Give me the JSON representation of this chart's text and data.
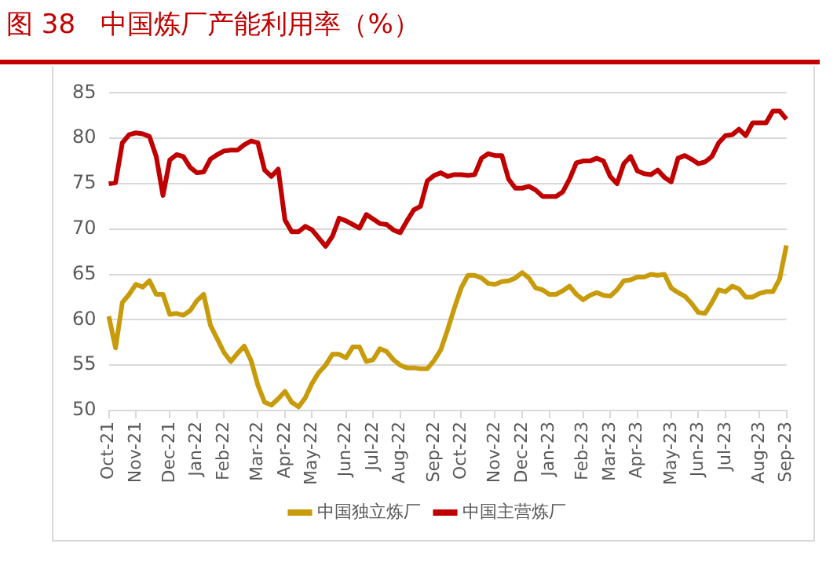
{
  "chart_data": {
    "type": "line",
    "title": "图 38   中国炼厂产能利用率（%）",
    "categories": [
      "Oct-21",
      null,
      null,
      null,
      "Nov-21",
      null,
      null,
      null,
      null,
      "Dec-21",
      null,
      null,
      null,
      "Jan-22",
      null,
      null,
      null,
      "Feb-22",
      null,
      null,
      null,
      null,
      "Mar-22",
      null,
      null,
      null,
      "Apr-22",
      null,
      null,
      null,
      "May-22",
      null,
      null,
      null,
      null,
      "Jun-22",
      null,
      null,
      null,
      "Jul-22",
      null,
      null,
      null,
      "Aug-22",
      null,
      null,
      null,
      null,
      "Sep-22",
      null,
      null,
      null,
      "Oct-22",
      null,
      null,
      null,
      null,
      "Nov-22",
      null,
      null,
      null,
      "Dec-22",
      null,
      null,
      null,
      "Jan-23",
      null,
      null,
      null,
      null,
      "Feb-23",
      null,
      null,
      null,
      "Mar-23",
      null,
      null,
      null,
      "Apr-23",
      null,
      null,
      null,
      null,
      "May-23",
      null,
      null,
      null,
      "Jun-23",
      null,
      null,
      null,
      "Jul-23",
      null,
      null,
      null,
      null,
      "Aug-23",
      null,
      null,
      null,
      "Sep-23"
    ],
    "series": [
      {
        "name": "中国独立炼厂",
        "color": "#c89b0a",
        "values": [
          60.4,
          56.9,
          61.9,
          62.8,
          63.9,
          63.6,
          64.3,
          62.8,
          62.8,
          60.6,
          60.7,
          60.5,
          61.0,
          62.1,
          62.8,
          59.4,
          57.9,
          56.4,
          55.4,
          56.3,
          57.1,
          55.5,
          52.8,
          50.9,
          50.6,
          51.3,
          52.1,
          50.9,
          50.4,
          51.4,
          53.0,
          54.2,
          55.0,
          56.2,
          56.2,
          55.8,
          57.0,
          57.0,
          55.4,
          55.6,
          56.8,
          56.5,
          55.6,
          55.0,
          54.7,
          54.7,
          54.6,
          54.6,
          55.5,
          56.7,
          58.9,
          61.3,
          63.5,
          64.9,
          64.9,
          64.6,
          64.0,
          63.9,
          64.2,
          64.3,
          64.6,
          65.2,
          64.6,
          63.5,
          63.3,
          62.8,
          62.8,
          63.2,
          63.7,
          62.8,
          62.2,
          62.7,
          63.0,
          62.7,
          62.6,
          63.3,
          64.3,
          64.4,
          64.7,
          64.7,
          65.0,
          64.9,
          65.0,
          63.5,
          63.0,
          62.6,
          61.8,
          60.8,
          60.7,
          61.9,
          63.3,
          63.1,
          63.7,
          63.4,
          62.5,
          62.5,
          62.9,
          63.1,
          63.1,
          64.5,
          68.2
        ]
      },
      {
        "name": "中国主营炼厂",
        "color": "#c00000",
        "values": [
          75.0,
          75.1,
          79.5,
          80.4,
          80.6,
          80.5,
          80.2,
          78.0,
          73.7,
          77.6,
          78.2,
          78.0,
          76.8,
          76.2,
          76.3,
          77.7,
          78.2,
          78.6,
          78.7,
          78.7,
          79.3,
          79.7,
          79.5,
          76.5,
          75.8,
          76.6,
          71.0,
          69.7,
          69.7,
          70.3,
          69.9,
          69.0,
          68.1,
          69.2,
          71.2,
          70.9,
          70.5,
          70.1,
          71.6,
          71.1,
          70.6,
          70.5,
          69.9,
          69.6,
          70.9,
          72.1,
          72.5,
          75.3,
          75.9,
          76.2,
          75.8,
          76.0,
          76.0,
          75.9,
          76.0,
          77.8,
          78.3,
          78.1,
          78.1,
          75.5,
          74.5,
          74.5,
          74.7,
          74.3,
          73.6,
          73.6,
          73.6,
          74.1,
          75.5,
          77.3,
          77.5,
          77.5,
          77.8,
          77.5,
          75.8,
          75.0,
          77.2,
          78.0,
          76.4,
          76.1,
          76.0,
          76.5,
          75.7,
          75.2,
          77.8,
          78.1,
          77.7,
          77.2,
          77.4,
          78.0,
          79.5,
          80.3,
          80.4,
          81.0,
          80.3,
          81.7,
          81.7,
          81.7,
          83.0,
          83.0,
          82.1
        ]
      }
    ],
    "ylim": [
      50,
      85
    ],
    "yticks": [
      50,
      55,
      60,
      65,
      70,
      75,
      80,
      85
    ],
    "grid": "y",
    "legend": "bottom",
    "marker": "none",
    "line_style": "solid"
  }
}
